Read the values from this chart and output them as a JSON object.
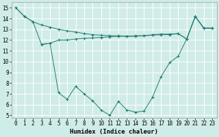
{
  "xlabel": "Humidex (Indice chaleur)",
  "xlim": [
    -0.5,
    23.5
  ],
  "ylim": [
    4.8,
    15.5
  ],
  "yticks": [
    5,
    6,
    7,
    8,
    9,
    10,
    11,
    12,
    13,
    14,
    15
  ],
  "xticks": [
    0,
    1,
    2,
    3,
    4,
    5,
    6,
    7,
    8,
    9,
    10,
    11,
    12,
    13,
    14,
    15,
    16,
    17,
    18,
    19,
    20,
    21,
    22,
    23
  ],
  "line1_x": [
    0,
    1,
    2,
    3,
    4,
    5,
    6,
    7,
    8,
    9,
    10,
    11,
    12,
    13,
    14,
    15,
    16,
    17,
    18,
    19,
    20,
    21,
    22,
    23
  ],
  "line1_y": [
    15.0,
    14.2,
    13.7,
    13.4,
    13.2,
    13.0,
    12.85,
    12.75,
    12.6,
    12.5,
    12.45,
    12.4,
    12.4,
    12.35,
    12.35,
    12.4,
    12.45,
    12.5,
    12.5,
    12.6,
    12.1,
    14.2,
    13.1,
    13.1
  ],
  "line2_x": [
    0,
    1,
    2,
    3,
    4,
    5,
    6,
    7,
    8,
    9,
    10,
    11,
    12,
    13,
    14,
    15,
    16,
    17,
    18,
    19,
    20,
    21,
    22,
    23
  ],
  "line2_y": [
    15.0,
    14.2,
    13.7,
    11.6,
    11.7,
    7.1,
    6.5,
    7.7,
    7.0,
    6.35,
    5.5,
    5.0,
    6.3,
    5.5,
    5.3,
    5.4,
    6.7,
    8.6,
    9.9,
    10.5,
    12.1,
    14.2,
    13.1,
    13.1
  ],
  "line3_x": [
    3,
    4,
    5,
    6,
    7,
    8,
    9,
    10,
    11,
    12,
    13,
    14,
    15,
    16,
    17,
    18,
    19,
    20,
    21,
    22,
    23
  ],
  "line3_y": [
    11.6,
    11.7,
    12.0,
    12.0,
    12.1,
    12.15,
    12.2,
    12.25,
    12.3,
    12.35,
    12.35,
    12.4,
    12.4,
    12.5,
    12.55,
    12.55,
    12.6,
    12.1,
    14.2,
    13.1,
    13.1
  ],
  "color": "#1e7b6e",
  "bg_color": "#d0ece8",
  "grid_color": "#ffffff",
  "label_fontsize": 6.5,
  "tick_fontsize": 5.5
}
